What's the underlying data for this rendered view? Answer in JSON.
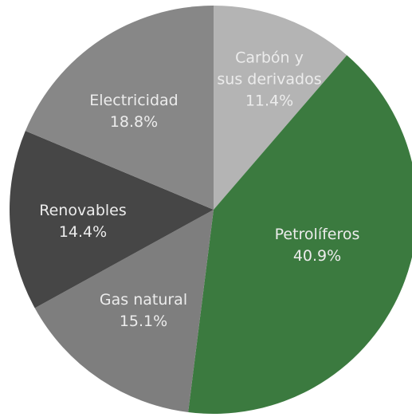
{
  "chart_data": {
    "type": "pie",
    "categories": [
      "Carbón y\nsus derivados",
      "Petrolíferos",
      "Gas natural",
      "Renovables",
      "Electricidad"
    ],
    "values": [
      11.4,
      40.9,
      15.1,
      14.4,
      18.8
    ],
    "value_labels": [
      "11.4%",
      "40.9%",
      "15.1%",
      "14.4%",
      "18.8%"
    ],
    "colors": [
      "#b4b4b4",
      "#3b7a3f",
      "#7e7e7e",
      "#464646",
      "#878787"
    ]
  }
}
